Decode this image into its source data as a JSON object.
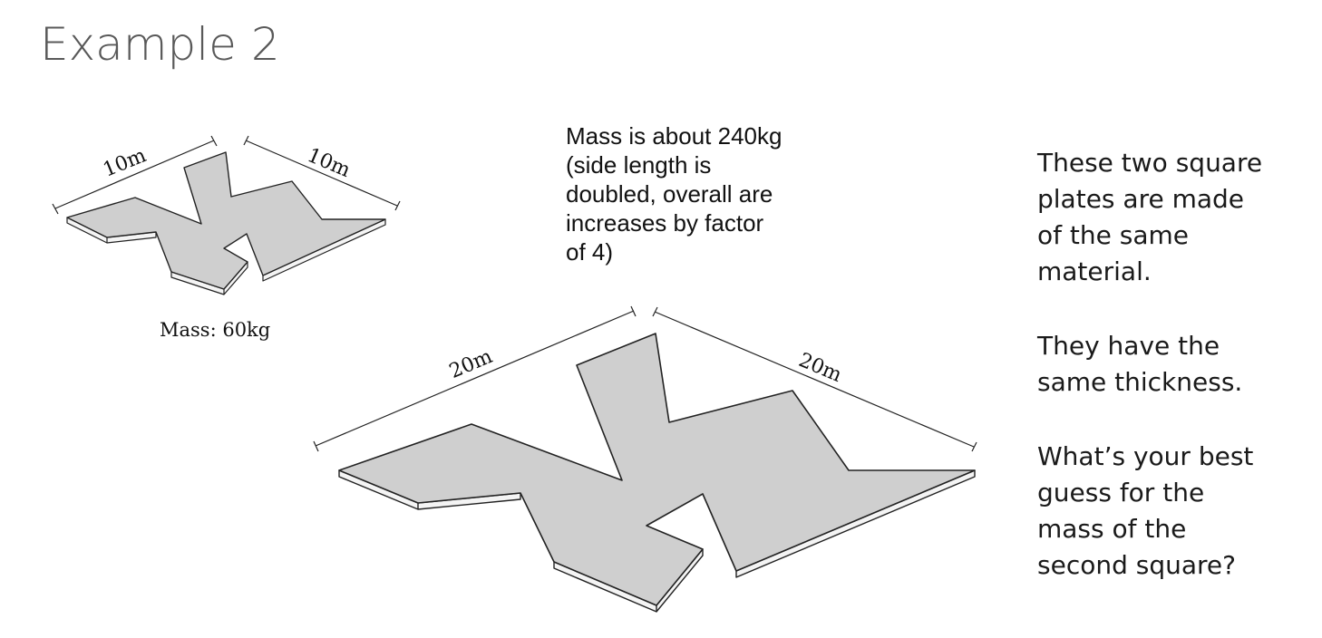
{
  "title": "Example 2",
  "small_plate": {
    "side_a": "10m",
    "side_b": "10m",
    "mass_label": "Mass: 60kg"
  },
  "large_plate": {
    "side_a": "20m",
    "side_b": "20m"
  },
  "annotation": [
    "Mass is about 240kg",
    "(side length is",
    "doubled, overall are",
    "increases by factor",
    "of 4)"
  ],
  "prompt": {
    "paragraph1": [
      "These two square",
      "plates are made",
      "of the same",
      "material."
    ],
    "paragraph2": [
      "They have the",
      "same thickness."
    ],
    "paragraph3": [
      "What’s your best",
      "guess for the",
      "mass of the",
      "second square?"
    ]
  },
  "colors": {
    "plate_fill": "#cfcfcf",
    "plate_edge": "#222222",
    "title": "#595959"
  }
}
